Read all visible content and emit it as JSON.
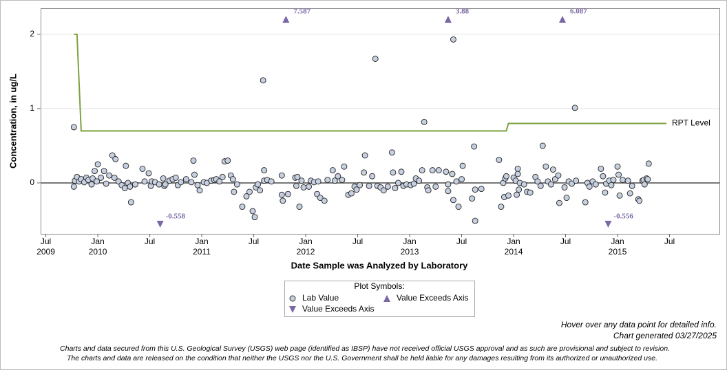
{
  "chart_data": {
    "type": "scatter",
    "ylabel": "Concentration, in ug/L",
    "xlabel": "Date Sample was Analyzed by Laboratory",
    "xlim": [
      2009.45,
      2015.98
    ],
    "ylim": [
      -0.685,
      2.35
    ],
    "yticks": [
      0,
      1,
      2
    ],
    "xticks": [
      {
        "value": 2009.5,
        "label": "Jul 2009"
      },
      {
        "value": 2010.0,
        "label": "Jan 2010"
      },
      {
        "value": 2010.5,
        "label": "Jul"
      },
      {
        "value": 2011.0,
        "label": "Jan 2011"
      },
      {
        "value": 2011.5,
        "label": "Jul"
      },
      {
        "value": 2012.0,
        "label": "Jan 2012"
      },
      {
        "value": 2012.5,
        "label": "Jul"
      },
      {
        "value": 2013.0,
        "label": "Jan 2013"
      },
      {
        "value": 2013.5,
        "label": "Jul"
      },
      {
        "value": 2014.0,
        "label": "Jan 2014"
      },
      {
        "value": 2014.5,
        "label": "Jul"
      },
      {
        "value": 2015.0,
        "label": "Jan 2015"
      },
      {
        "value": 2015.5,
        "label": "Jul"
      }
    ],
    "grid": true,
    "hline": 0,
    "legend_title": "Plot Symbols:",
    "series": [
      {
        "name": "Lab Value",
        "marker": "circle",
        "color": "#c6d0e1",
        "in_legend": true,
        "x": [
          2009.77,
          2009.77,
          2009.78,
          2009.8,
          2009.82,
          2009.84,
          2009.87,
          2009.89,
          2009.91,
          2009.94,
          2009.95,
          2009.97,
          2009.99,
          2010.0,
          2010.03,
          2010.06,
          2010.08,
          2010.11,
          2010.14,
          2010.16,
          2010.17,
          2010.2,
          2010.23,
          2010.26,
          2010.27,
          2010.29,
          2010.31,
          2010.32,
          2010.36,
          2010.43,
          2010.45,
          2010.49,
          2010.51,
          2010.52,
          2010.55,
          2010.59,
          2010.63,
          2010.64,
          2010.65,
          2010.69,
          2010.72,
          2010.75,
          2010.77,
          2010.8,
          2010.85,
          2010.9,
          2010.92,
          2010.93,
          2010.96,
          2010.98,
          2011.02,
          2011.05,
          2011.09,
          2011.12,
          2011.14,
          2011.17,
          2011.2,
          2011.22,
          2011.25,
          2011.28,
          2011.3,
          2011.31,
          2011.34,
          2011.39,
          2011.43,
          2011.46,
          2011.49,
          2011.51,
          2011.52,
          2011.54,
          2011.56,
          2011.59,
          2011.6,
          2011.6,
          2011.63,
          2011.67,
          2011.77,
          2011.77,
          2011.78,
          2011.83,
          2011.9,
          2011.91,
          2011.92,
          2011.94,
          2011.96,
          2011.98,
          2012.03,
          2012.05,
          2012.08,
          2012.12,
          2012.11,
          2012.14,
          2012.18,
          2012.21,
          2012.26,
          2012.28,
          2012.31,
          2012.35,
          2012.37,
          2012.41,
          2012.44,
          2012.47,
          2012.49,
          2012.52,
          2012.56,
          2012.57,
          2012.61,
          2012.64,
          2012.67,
          2012.69,
          2012.72,
          2012.75,
          2012.79,
          2012.83,
          2012.84,
          2012.86,
          2012.89,
          2012.92,
          2012.94,
          2012.97,
          2013.01,
          2013.04,
          2013.06,
          2013.09,
          2013.12,
          2013.14,
          2013.17,
          2013.18,
          2013.22,
          2013.25,
          2013.28,
          2013.35,
          2013.37,
          2013.37,
          2013.41,
          2013.42,
          2013.42,
          2013.45,
          2013.47,
          2013.51,
          2013.5,
          2013.6,
          2013.62,
          2013.63,
          2013.63,
          2013.69,
          2013.86,
          2013.88,
          2013.9,
          2013.91,
          2013.92,
          2013.93,
          2013.95,
          2014.0,
          2014.02,
          2014.03,
          2014.04,
          2014.04,
          2014.05,
          2014.06,
          2014.1,
          2014.13,
          2014.16,
          2014.21,
          2014.23,
          2014.26,
          2014.28,
          2014.31,
          2014.33,
          2014.36,
          2014.38,
          2014.4,
          2014.43,
          2014.44,
          2014.49,
          2014.51,
          2014.53,
          2014.56,
          2014.59,
          2014.6,
          2014.69,
          2014.71,
          2014.73,
          2014.76,
          2014.79,
          2014.84,
          2014.86,
          2014.88,
          2014.89,
          2014.92,
          2014.94,
          2014.96,
          2015.0,
          2015.01,
          2015.02,
          2015.05,
          2015.1,
          2015.12,
          2015.14,
          2015.2,
          2015.21,
          2015.24,
          2015.25,
          2015.26,
          2015.28,
          2015.29,
          2015.3
        ],
        "values": [
          0.75,
          -0.05,
          0.03,
          0.08,
          0.02,
          0.05,
          0.01,
          0.07,
          0.04,
          -0.02,
          0.06,
          0.16,
          0.02,
          0.25,
          0.07,
          0.16,
          -0.01,
          0.1,
          0.37,
          0.07,
          0.32,
          0.02,
          -0.03,
          -0.07,
          0.23,
          0.0,
          -0.05,
          -0.26,
          -0.02,
          0.19,
          0.02,
          0.13,
          -0.04,
          0.02,
          0.01,
          -0.02,
          0.06,
          -0.04,
          -0.02,
          0.03,
          0.05,
          0.07,
          -0.03,
          0.01,
          0.05,
          0.01,
          0.3,
          0.11,
          -0.03,
          -0.1,
          0.01,
          0.0,
          0.03,
          0.04,
          0.05,
          0.02,
          0.08,
          0.29,
          0.3,
          0.1,
          0.05,
          -0.12,
          -0.02,
          -0.32,
          -0.18,
          -0.12,
          -0.38,
          -0.46,
          -0.06,
          -0.02,
          -0.1,
          1.38,
          0.17,
          0.03,
          0.04,
          0.02,
          0.1,
          -0.16,
          -0.24,
          -0.15,
          0.07,
          -0.04,
          0.08,
          -0.32,
          0.03,
          -0.06,
          -0.05,
          0.03,
          0.01,
          0.02,
          -0.15,
          -0.2,
          -0.24,
          0.04,
          0.17,
          0.03,
          0.09,
          0.04,
          0.22,
          -0.16,
          -0.14,
          -0.05,
          -0.09,
          -0.03,
          0.14,
          0.37,
          -0.04,
          0.09,
          1.67,
          -0.04,
          -0.06,
          -0.1,
          -0.05,
          0.41,
          0.14,
          -0.07,
          0.0,
          0.15,
          -0.04,
          -0.02,
          -0.03,
          -0.01,
          0.06,
          0.03,
          0.17,
          0.82,
          -0.06,
          -0.1,
          0.17,
          -0.05,
          0.17,
          0.15,
          -0.02,
          -0.11,
          0.12,
          1.93,
          -0.23,
          0.02,
          -0.32,
          0.23,
          0.05,
          -0.21,
          0.49,
          -0.51,
          -0.09,
          -0.08,
          0.31,
          -0.32,
          0.0,
          -0.19,
          0.06,
          0.09,
          -0.17,
          0.07,
          0.03,
          -0.16,
          0.19,
          0.12,
          -0.09,
          0.0,
          -0.02,
          -0.12,
          -0.13,
          0.08,
          0.02,
          -0.04,
          0.5,
          0.22,
          0.02,
          -0.02,
          0.18,
          0.05,
          0.1,
          -0.27,
          -0.06,
          -0.2,
          0.02,
          -0.01,
          1.01,
          0.03,
          -0.26,
          0.0,
          -0.05,
          0.02,
          -0.02,
          0.19,
          0.09,
          -0.13,
          -0.01,
          0.03,
          -0.03,
          0.04,
          0.22,
          0.11,
          -0.17,
          0.04,
          0.03,
          -0.14,
          -0.04,
          -0.22,
          -0.24,
          0.03,
          0.04,
          -0.02,
          0.06,
          0.05,
          0.26
        ]
      },
      {
        "name": "Value Exceeds Axis",
        "marker": "triangle-up",
        "color": "#7b67a5",
        "in_legend": true,
        "x": [
          2011.81,
          2013.37,
          2014.47
        ],
        "values": [
          7.587,
          3.88,
          6.087
        ]
      },
      {
        "name": "Value Exceeds Axis",
        "marker": "triangle-down",
        "color": "#7b67a5",
        "in_legend": true,
        "x": [
          2010.6,
          2014.91
        ],
        "values": [
          -0.558,
          -0.556
        ]
      },
      {
        "name": "RPT Level",
        "marker": "line",
        "color": "#7ba23f",
        "in_legend": false,
        "x": [
          2009.77,
          2009.8,
          2009.84,
          2013.93,
          2013.95,
          2015.47
        ],
        "values": [
          2,
          2,
          0.7,
          0.7,
          0.8,
          0.8
        ]
      }
    ],
    "notes": [
      "Hover over any data point for detailed info.",
      "Chart generated 03/27/2025"
    ],
    "disclaimer": [
      "Charts and data secured from this U.S. Geological Survey (USGS) web page (identified as IBSP) have not received official USGS approval and as such are provisional and subject to revision.",
      "The charts and data are released on the condition that neither the USGS nor the U.S. Government shall be held liable for any damages resulting from its authorized or unauthorized use."
    ]
  }
}
